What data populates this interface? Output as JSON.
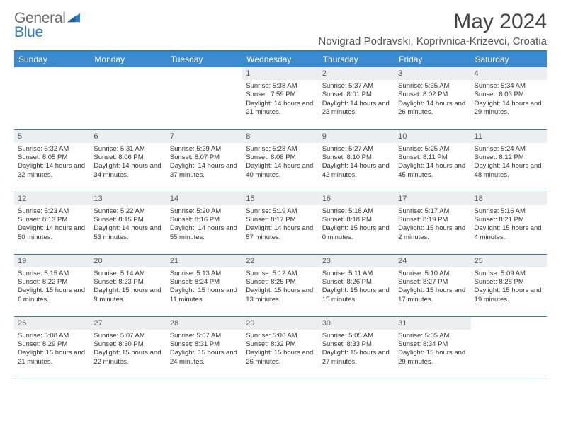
{
  "logo": {
    "part1": "General",
    "part2": "Blue"
  },
  "title": "May 2024",
  "location": "Novigrad Podravski, Koprivnica-Krizevci, Croatia",
  "colors": {
    "header_bg": "#3a8bd0",
    "header_fg": "#ffffff",
    "border": "#2b7dc1",
    "daynum_bg": "#eceef0",
    "text": "#333333",
    "logo_gray": "#6a6a6a",
    "logo_blue": "#2b7dc1"
  },
  "daysOfWeek": [
    "Sunday",
    "Monday",
    "Tuesday",
    "Wednesday",
    "Thursday",
    "Friday",
    "Saturday"
  ],
  "weeks": [
    [
      null,
      null,
      null,
      {
        "n": "1",
        "sr": "5:38 AM",
        "ss": "7:59 PM",
        "dl": "14 hours and 21 minutes."
      },
      {
        "n": "2",
        "sr": "5:37 AM",
        "ss": "8:01 PM",
        "dl": "14 hours and 23 minutes."
      },
      {
        "n": "3",
        "sr": "5:35 AM",
        "ss": "8:02 PM",
        "dl": "14 hours and 26 minutes."
      },
      {
        "n": "4",
        "sr": "5:34 AM",
        "ss": "8:03 PM",
        "dl": "14 hours and 29 minutes."
      }
    ],
    [
      {
        "n": "5",
        "sr": "5:32 AM",
        "ss": "8:05 PM",
        "dl": "14 hours and 32 minutes."
      },
      {
        "n": "6",
        "sr": "5:31 AM",
        "ss": "8:06 PM",
        "dl": "14 hours and 34 minutes."
      },
      {
        "n": "7",
        "sr": "5:29 AM",
        "ss": "8:07 PM",
        "dl": "14 hours and 37 minutes."
      },
      {
        "n": "8",
        "sr": "5:28 AM",
        "ss": "8:08 PM",
        "dl": "14 hours and 40 minutes."
      },
      {
        "n": "9",
        "sr": "5:27 AM",
        "ss": "8:10 PM",
        "dl": "14 hours and 42 minutes."
      },
      {
        "n": "10",
        "sr": "5:25 AM",
        "ss": "8:11 PM",
        "dl": "14 hours and 45 minutes."
      },
      {
        "n": "11",
        "sr": "5:24 AM",
        "ss": "8:12 PM",
        "dl": "14 hours and 48 minutes."
      }
    ],
    [
      {
        "n": "12",
        "sr": "5:23 AM",
        "ss": "8:13 PM",
        "dl": "14 hours and 50 minutes."
      },
      {
        "n": "13",
        "sr": "5:22 AM",
        "ss": "8:15 PM",
        "dl": "14 hours and 53 minutes."
      },
      {
        "n": "14",
        "sr": "5:20 AM",
        "ss": "8:16 PM",
        "dl": "14 hours and 55 minutes."
      },
      {
        "n": "15",
        "sr": "5:19 AM",
        "ss": "8:17 PM",
        "dl": "14 hours and 57 minutes."
      },
      {
        "n": "16",
        "sr": "5:18 AM",
        "ss": "8:18 PM",
        "dl": "15 hours and 0 minutes."
      },
      {
        "n": "17",
        "sr": "5:17 AM",
        "ss": "8:19 PM",
        "dl": "15 hours and 2 minutes."
      },
      {
        "n": "18",
        "sr": "5:16 AM",
        "ss": "8:21 PM",
        "dl": "15 hours and 4 minutes."
      }
    ],
    [
      {
        "n": "19",
        "sr": "5:15 AM",
        "ss": "8:22 PM",
        "dl": "15 hours and 6 minutes."
      },
      {
        "n": "20",
        "sr": "5:14 AM",
        "ss": "8:23 PM",
        "dl": "15 hours and 9 minutes."
      },
      {
        "n": "21",
        "sr": "5:13 AM",
        "ss": "8:24 PM",
        "dl": "15 hours and 11 minutes."
      },
      {
        "n": "22",
        "sr": "5:12 AM",
        "ss": "8:25 PM",
        "dl": "15 hours and 13 minutes."
      },
      {
        "n": "23",
        "sr": "5:11 AM",
        "ss": "8:26 PM",
        "dl": "15 hours and 15 minutes."
      },
      {
        "n": "24",
        "sr": "5:10 AM",
        "ss": "8:27 PM",
        "dl": "15 hours and 17 minutes."
      },
      {
        "n": "25",
        "sr": "5:09 AM",
        "ss": "8:28 PM",
        "dl": "15 hours and 19 minutes."
      }
    ],
    [
      {
        "n": "26",
        "sr": "5:08 AM",
        "ss": "8:29 PM",
        "dl": "15 hours and 21 minutes."
      },
      {
        "n": "27",
        "sr": "5:07 AM",
        "ss": "8:30 PM",
        "dl": "15 hours and 22 minutes."
      },
      {
        "n": "28",
        "sr": "5:07 AM",
        "ss": "8:31 PM",
        "dl": "15 hours and 24 minutes."
      },
      {
        "n": "29",
        "sr": "5:06 AM",
        "ss": "8:32 PM",
        "dl": "15 hours and 26 minutes."
      },
      {
        "n": "30",
        "sr": "5:05 AM",
        "ss": "8:33 PM",
        "dl": "15 hours and 27 minutes."
      },
      {
        "n": "31",
        "sr": "5:05 AM",
        "ss": "8:34 PM",
        "dl": "15 hours and 29 minutes."
      },
      null
    ]
  ],
  "labels": {
    "sunrise": "Sunrise:",
    "sunset": "Sunset:",
    "daylight": "Daylight:"
  }
}
